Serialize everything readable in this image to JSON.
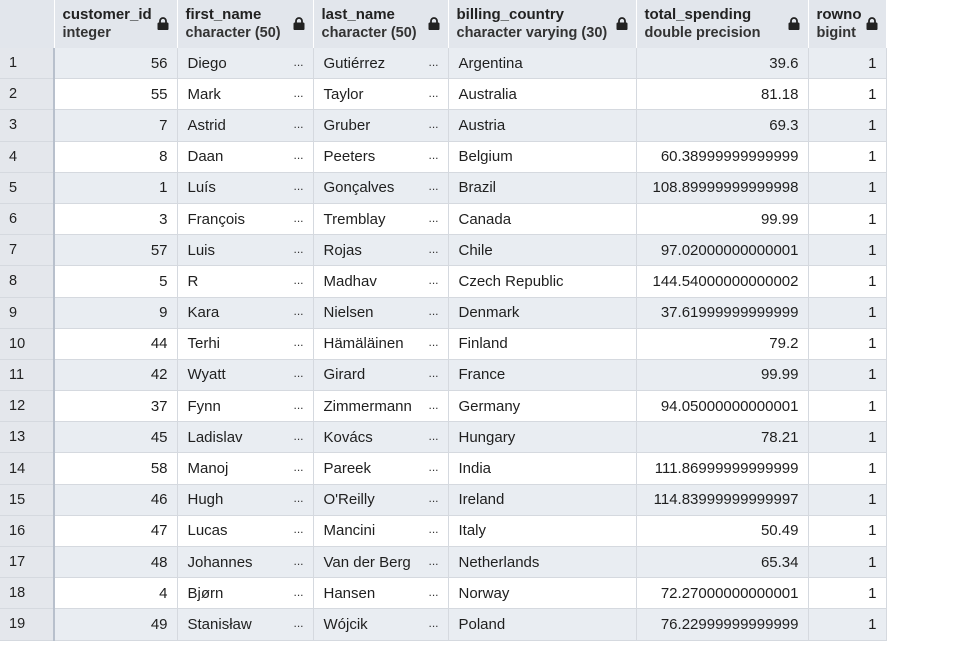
{
  "columns": [
    {
      "name": "customer_id",
      "type": "integer"
    },
    {
      "name": "first_name",
      "type": "character (50)"
    },
    {
      "name": "last_name",
      "type": "character (50)"
    },
    {
      "name": "billing_country",
      "type": "character varying (30)"
    },
    {
      "name": "total_spending",
      "type": "double precision"
    },
    {
      "name": "rowno",
      "type": "bigint"
    }
  ],
  "ellipsis": "...",
  "rows": [
    {
      "n": "1",
      "customer_id": "56",
      "first_name": "Diego",
      "last_name": "Gutiérrez",
      "billing_country": "Argentina",
      "total_spending": "39.6",
      "rowno": "1"
    },
    {
      "n": "2",
      "customer_id": "55",
      "first_name": "Mark",
      "last_name": "Taylor",
      "billing_country": "Australia",
      "total_spending": "81.18",
      "rowno": "1"
    },
    {
      "n": "3",
      "customer_id": "7",
      "first_name": "Astrid",
      "last_name": "Gruber",
      "billing_country": "Austria",
      "total_spending": "69.3",
      "rowno": "1"
    },
    {
      "n": "4",
      "customer_id": "8",
      "first_name": "Daan",
      "last_name": "Peeters",
      "billing_country": "Belgium",
      "total_spending": "60.38999999999999",
      "rowno": "1"
    },
    {
      "n": "5",
      "customer_id": "1",
      "first_name": "Luís",
      "last_name": "Gonçalves",
      "billing_country": "Brazil",
      "total_spending": "108.89999999999998",
      "rowno": "1"
    },
    {
      "n": "6",
      "customer_id": "3",
      "first_name": "François",
      "last_name": "Tremblay",
      "billing_country": "Canada",
      "total_spending": "99.99",
      "rowno": "1"
    },
    {
      "n": "7",
      "customer_id": "57",
      "first_name": "Luis",
      "last_name": "Rojas",
      "billing_country": "Chile",
      "total_spending": "97.02000000000001",
      "rowno": "1"
    },
    {
      "n": "8",
      "customer_id": "5",
      "first_name": "R",
      "last_name": "Madhav",
      "billing_country": "Czech Republic",
      "total_spending": "144.54000000000002",
      "rowno": "1"
    },
    {
      "n": "9",
      "customer_id": "9",
      "first_name": "Kara",
      "last_name": "Nielsen",
      "billing_country": "Denmark",
      "total_spending": "37.61999999999999",
      "rowno": "1"
    },
    {
      "n": "10",
      "customer_id": "44",
      "first_name": "Terhi",
      "last_name": "Hämäläinen",
      "billing_country": "Finland",
      "total_spending": "79.2",
      "rowno": "1"
    },
    {
      "n": "11",
      "customer_id": "42",
      "first_name": "Wyatt",
      "last_name": "Girard",
      "billing_country": "France",
      "total_spending": "99.99",
      "rowno": "1"
    },
    {
      "n": "12",
      "customer_id": "37",
      "first_name": "Fynn",
      "last_name": "Zimmermann",
      "billing_country": "Germany",
      "total_spending": "94.05000000000001",
      "rowno": "1"
    },
    {
      "n": "13",
      "customer_id": "45",
      "first_name": "Ladislav",
      "last_name": "Kovács",
      "billing_country": "Hungary",
      "total_spending": "78.21",
      "rowno": "1"
    },
    {
      "n": "14",
      "customer_id": "58",
      "first_name": "Manoj",
      "last_name": "Pareek",
      "billing_country": "India",
      "total_spending": "111.86999999999999",
      "rowno": "1"
    },
    {
      "n": "15",
      "customer_id": "46",
      "first_name": "Hugh",
      "last_name": "O'Reilly",
      "billing_country": "Ireland",
      "total_spending": "114.83999999999997",
      "rowno": "1"
    },
    {
      "n": "16",
      "customer_id": "47",
      "first_name": "Lucas",
      "last_name": "Mancini",
      "billing_country": "Italy",
      "total_spending": "50.49",
      "rowno": "1"
    },
    {
      "n": "17",
      "customer_id": "48",
      "first_name": "Johannes",
      "last_name": "Van der Berg",
      "billing_country": "Netherlands",
      "total_spending": "65.34",
      "rowno": "1"
    },
    {
      "n": "18",
      "customer_id": "4",
      "first_name": "Bjørn",
      "last_name": "Hansen",
      "billing_country": "Norway",
      "total_spending": "72.27000000000001",
      "rowno": "1"
    },
    {
      "n": "19",
      "customer_id": "49",
      "first_name": "Stanisław",
      "last_name": "Wójcik",
      "billing_country": "Poland",
      "total_spending": "76.22999999999999",
      "rowno": "1"
    }
  ]
}
